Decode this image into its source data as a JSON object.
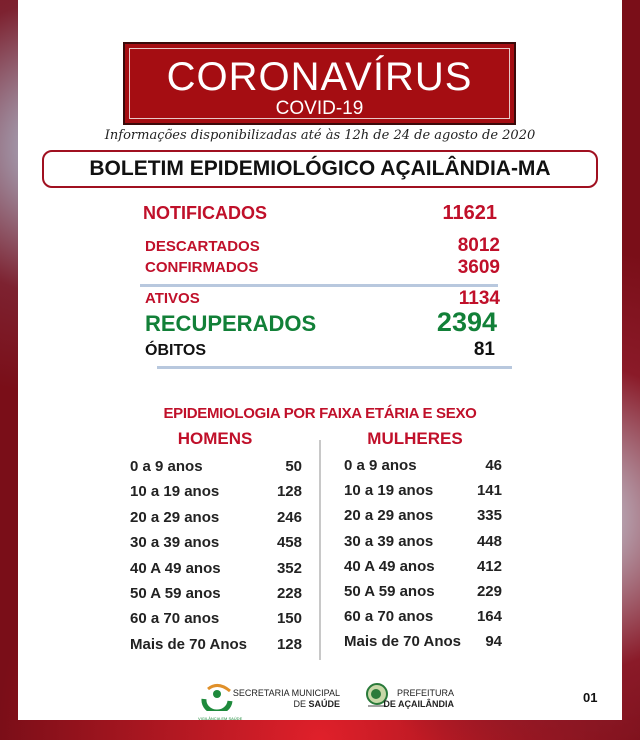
{
  "header": {
    "title": "CORONAVÍRUS",
    "subtitle": "COVID-19",
    "info": "Informações disponibilizadas até às 12h  de  24 de  agosto de 2020",
    "bulletin": "BOLETIM EPIDEMIOLÓGICO AÇAILÂNDIA-MA"
  },
  "stats": [
    {
      "label": "NOTIFICADOS",
      "value": "11621"
    },
    {
      "label": "DESCARTADOS",
      "value": "8012"
    },
    {
      "label": "CONFIRMADOS",
      "value": "3609"
    },
    {
      "label": "ATIVOS",
      "value": "1134"
    },
    {
      "label": "RECUPERADOS",
      "value": "2394"
    },
    {
      "label": "ÓBITOS",
      "value": "81"
    }
  ],
  "age": {
    "title": "EPIDEMIOLOGIA POR FAIXA ETÁRIA E SEXO",
    "men": {
      "label": "HOMENS",
      "rows": [
        [
          "0 a 9 anos",
          "50"
        ],
        [
          "10 a 19 anos",
          "128"
        ],
        [
          "20 a 29 anos",
          "246"
        ],
        [
          "30 a 39 anos",
          "458"
        ],
        [
          "40 A 49 anos",
          "352"
        ],
        [
          "50 A 59 anos",
          "228"
        ],
        [
          "60 a 70 anos",
          "150"
        ],
        [
          "Mais de 70 Anos",
          "128"
        ]
      ]
    },
    "women": {
      "label": "MULHERES",
      "rows": [
        [
          "0 a 9 anos",
          "46"
        ],
        [
          "10 a 19 anos",
          "141"
        ],
        [
          "20 a 29 anos",
          "335"
        ],
        [
          "30 a 39 anos",
          "448"
        ],
        [
          "40 A 49 anos",
          "412"
        ],
        [
          "50 A 59 anos",
          "229"
        ],
        [
          "60 a 70 anos",
          "164"
        ],
        [
          "Mais de 70 Anos",
          "94"
        ]
      ]
    }
  },
  "footer": {
    "vig_logo": "VIGILÂNCIA EM SAÚDE",
    "sec1": "SECRETARIA MUNICIPAL",
    "sec2a": "DE ",
    "sec2b": "SAÚDE",
    "pref1": "PREFEITURA",
    "pref2": "DE AÇAILÂNDIA",
    "page": "01"
  },
  "colors": {
    "red": "#c0102a",
    "green": "#128038",
    "logo_bg": "#a50d12"
  }
}
